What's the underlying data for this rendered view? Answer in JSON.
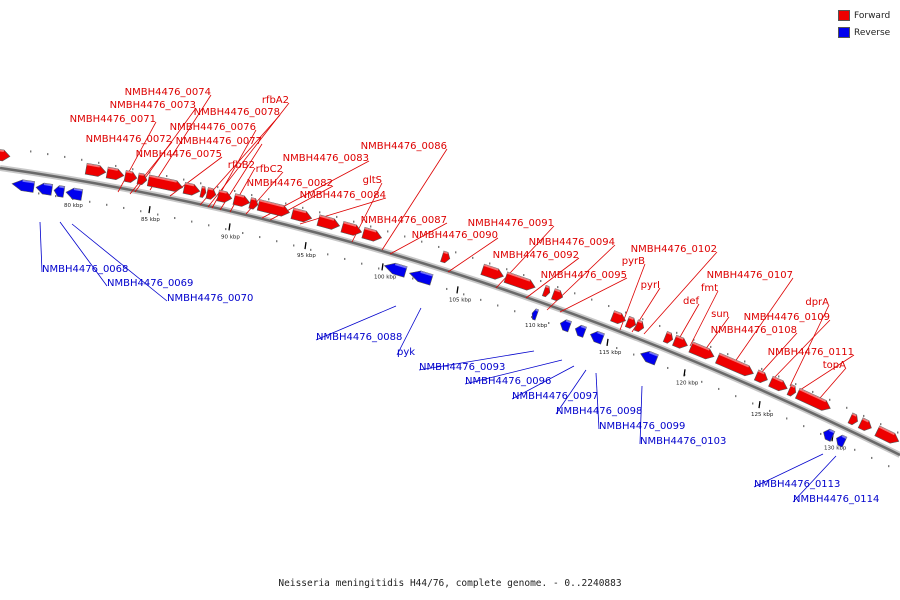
{
  "legend": {
    "forward_label": "Forward",
    "reverse_label": "Reverse",
    "forward_color": "#ee0000",
    "reverse_color": "#0000ee"
  },
  "caption": "Neisseria meningitidis H44/76, complete genome. - 0..2240883",
  "axis_ticks": [
    "80 kbp",
    "85 kbp",
    "90 kbp",
    "95 kbp",
    "100 kbp",
    "105 kbp",
    "110 kbp",
    "115 kbp",
    "120 kbp",
    "125 kbp",
    "130 kbp"
  ],
  "forward_gene_labels": [
    "NMBH4476_0074",
    "NMBH4476_0073",
    "NMBH4476_0071",
    "NMBH4476_0072",
    "NMBH4476_0075",
    "NMBH4476_0078",
    "rfbA2",
    "NMBH4476_0076",
    "NMBH4476_0077",
    "rfbB2",
    "rfbC2",
    "NMBH4476_0083",
    "NMBH4476_0082",
    "NMBH4476_0084",
    "gltS",
    "NMBH4476_0086",
    "NMBH4476_0087",
    "NMBH4476_0090",
    "NMBH4476_0091",
    "NMBH4476_0092",
    "NMBH4476_0094",
    "NMBH4476_0095",
    "pyrB",
    "pyrI",
    "NMBH4476_0102",
    "fmt",
    "def",
    "sun",
    "NMBH4476_0107",
    "NMBH4476_0108",
    "NMBH4476_0109",
    "dprA",
    "NMBH4476_0111",
    "topA"
  ],
  "reverse_gene_labels": [
    "NMBH4476_0068",
    "NMBH4476_0069",
    "NMBH4476_0070",
    "NMBH4476_0088",
    "pyk",
    "NMBH4476_0093",
    "NMBH4476_0096",
    "NMBH4476_0097",
    "NMBH4476_0098",
    "NMBH4476_0099",
    "NMBH4476_0103",
    "NMBH4476_0113",
    "NMBH4476_0114"
  ]
}
